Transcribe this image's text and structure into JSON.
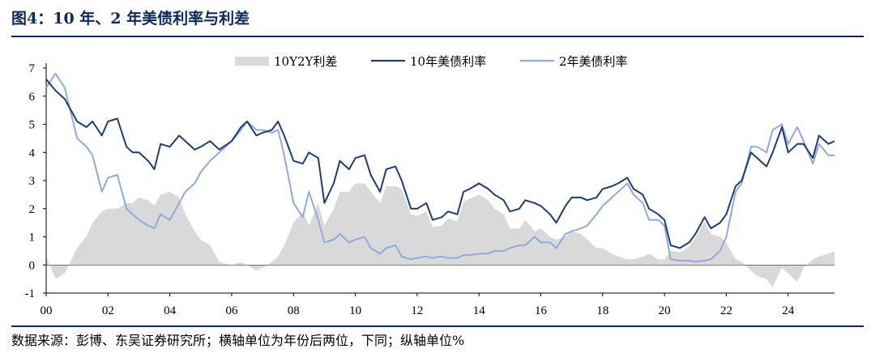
{
  "title": "图4：10 年、2 年美债利率与利差",
  "source": "数据来源：彭博、东吴证券研究所；横轴单位为年份后两位，下同；纵轴单位%",
  "colors": {
    "spread": "#d9d9d9",
    "y10": "#1f3d73",
    "y2": "#8faadc",
    "accent": "#0b2a5b"
  },
  "chart_data": {
    "type": "line",
    "xlabel": "",
    "ylabel": "",
    "ylim": [
      -1,
      7
    ],
    "xlim": [
      2000,
      2025.5
    ],
    "x_ticks": [
      {
        "value": 2000,
        "label": "00"
      },
      {
        "value": 2002,
        "label": "02"
      },
      {
        "value": 2004,
        "label": "04"
      },
      {
        "value": 2006,
        "label": "06"
      },
      {
        "value": 2008,
        "label": "08"
      },
      {
        "value": 2010,
        "label": "10"
      },
      {
        "value": 2012,
        "label": "12"
      },
      {
        "value": 2014,
        "label": "14"
      },
      {
        "value": 2016,
        "label": "16"
      },
      {
        "value": 2018,
        "label": "18"
      },
      {
        "value": 2020,
        "label": "20"
      },
      {
        "value": 2022,
        "label": "22"
      },
      {
        "value": 2024,
        "label": "24"
      }
    ],
    "y_ticks": [
      {
        "value": 7,
        "label": "7"
      },
      {
        "value": 6,
        "label": "6"
      },
      {
        "value": 5,
        "label": "5"
      },
      {
        "value": 4,
        "label": "4"
      },
      {
        "value": 3,
        "label": "3"
      },
      {
        "value": 2,
        "label": "2"
      },
      {
        "value": 1,
        "label": "1"
      },
      {
        "value": 0,
        "label": "0"
      },
      {
        "value": -1,
        "label": "-1"
      }
    ],
    "legend": {
      "position": "top-center",
      "items": [
        {
          "name": "10Y2Y利差",
          "kind": "area",
          "color": "#d9d9d9"
        },
        {
          "name": "10年美债利率",
          "kind": "line",
          "color": "#1f3d73"
        },
        {
          "name": "2年美债利率",
          "kind": "line",
          "color": "#8faadc"
        }
      ]
    },
    "series": [
      {
        "name": "10年美债利率",
        "kind": "line",
        "x": [
          2000.0,
          2000.3,
          2000.6,
          2001.0,
          2001.3,
          2001.5,
          2001.8,
          2002.0,
          2002.3,
          2002.6,
          2002.8,
          2003.0,
          2003.3,
          2003.5,
          2003.7,
          2004.0,
          2004.3,
          2004.5,
          2004.8,
          2005.0,
          2005.3,
          2005.6,
          2006.0,
          2006.3,
          2006.5,
          2006.8,
          2007.0,
          2007.3,
          2007.5,
          2007.7,
          2008.0,
          2008.3,
          2008.5,
          2008.8,
          2009.0,
          2009.3,
          2009.5,
          2009.8,
          2010.0,
          2010.3,
          2010.5,
          2010.8,
          2011.0,
          2011.3,
          2011.5,
          2011.8,
          2012.0,
          2012.3,
          2012.5,
          2012.8,
          2013.0,
          2013.3,
          2013.5,
          2013.7,
          2014.0,
          2014.3,
          2014.5,
          2014.8,
          2015.0,
          2015.3,
          2015.5,
          2015.8,
          2016.0,
          2016.3,
          2016.5,
          2016.8,
          2017.0,
          2017.3,
          2017.5,
          2017.8,
          2018.0,
          2018.3,
          2018.5,
          2018.8,
          2019.0,
          2019.3,
          2019.5,
          2019.8,
          2020.0,
          2020.2,
          2020.5,
          2020.8,
          2021.0,
          2021.3,
          2021.5,
          2021.8,
          2022.0,
          2022.3,
          2022.5,
          2022.8,
          2023.0,
          2023.3,
          2023.5,
          2023.8,
          2024.0,
          2024.3,
          2024.5,
          2024.8,
          2025.0,
          2025.3,
          2025.5
        ],
        "values": [
          6.6,
          6.2,
          5.9,
          5.1,
          4.9,
          5.1,
          4.6,
          5.1,
          5.2,
          4.2,
          4.0,
          4.0,
          3.7,
          3.4,
          4.3,
          4.2,
          4.6,
          4.4,
          4.1,
          4.2,
          4.4,
          4.1,
          4.4,
          4.9,
          5.1,
          4.6,
          4.7,
          4.8,
          5.1,
          4.6,
          3.7,
          3.6,
          4.0,
          3.8,
          2.2,
          2.9,
          3.7,
          3.4,
          3.8,
          3.9,
          3.2,
          2.6,
          3.4,
          3.5,
          3.0,
          2.0,
          2.0,
          2.2,
          1.6,
          1.7,
          1.9,
          1.8,
          2.6,
          2.7,
          2.9,
          2.7,
          2.5,
          2.3,
          1.9,
          2.0,
          2.3,
          2.2,
          2.1,
          1.8,
          1.5,
          2.1,
          2.4,
          2.4,
          2.3,
          2.4,
          2.7,
          2.8,
          2.9,
          3.1,
          2.7,
          2.5,
          2.0,
          1.8,
          1.6,
          0.7,
          0.6,
          0.8,
          1.1,
          1.7,
          1.3,
          1.5,
          1.8,
          2.8,
          3.0,
          4.0,
          3.8,
          3.5,
          4.0,
          4.9,
          4.0,
          4.3,
          4.3,
          3.8,
          4.6,
          4.3,
          4.4
        ]
      },
      {
        "name": "2年美债利率",
        "kind": "line",
        "x": [
          2000.0,
          2000.3,
          2000.6,
          2001.0,
          2001.3,
          2001.5,
          2001.8,
          2002.0,
          2002.3,
          2002.6,
          2002.8,
          2003.0,
          2003.3,
          2003.5,
          2003.7,
          2004.0,
          2004.3,
          2004.5,
          2004.8,
          2005.0,
          2005.3,
          2005.6,
          2006.0,
          2006.3,
          2006.5,
          2006.8,
          2007.0,
          2007.3,
          2007.5,
          2007.7,
          2008.0,
          2008.3,
          2008.5,
          2008.8,
          2009.0,
          2009.3,
          2009.5,
          2009.8,
          2010.0,
          2010.3,
          2010.5,
          2010.8,
          2011.0,
          2011.3,
          2011.5,
          2011.8,
          2012.0,
          2012.3,
          2012.5,
          2012.8,
          2013.0,
          2013.3,
          2013.5,
          2013.7,
          2014.0,
          2014.3,
          2014.5,
          2014.8,
          2015.0,
          2015.3,
          2015.5,
          2015.8,
          2016.0,
          2016.3,
          2016.5,
          2016.8,
          2017.0,
          2017.3,
          2017.5,
          2017.8,
          2018.0,
          2018.3,
          2018.5,
          2018.8,
          2019.0,
          2019.3,
          2019.5,
          2019.8,
          2020.0,
          2020.2,
          2020.5,
          2020.8,
          2021.0,
          2021.3,
          2021.5,
          2021.8,
          2022.0,
          2022.3,
          2022.5,
          2022.8,
          2023.0,
          2023.3,
          2023.5,
          2023.8,
          2024.0,
          2024.3,
          2024.5,
          2024.8,
          2025.0,
          2025.3,
          2025.5
        ],
        "values": [
          6.3,
          6.8,
          6.3,
          4.5,
          4.2,
          3.9,
          2.6,
          3.1,
          3.2,
          2.0,
          1.8,
          1.6,
          1.4,
          1.3,
          1.8,
          1.6,
          2.2,
          2.6,
          2.9,
          3.3,
          3.7,
          4.0,
          4.4,
          4.8,
          5.1,
          4.8,
          4.8,
          4.7,
          4.8,
          3.9,
          2.2,
          1.7,
          2.6,
          1.6,
          0.8,
          0.9,
          1.1,
          0.8,
          0.9,
          1.0,
          0.6,
          0.4,
          0.6,
          0.7,
          0.3,
          0.2,
          0.25,
          0.3,
          0.25,
          0.3,
          0.25,
          0.25,
          0.35,
          0.35,
          0.4,
          0.4,
          0.5,
          0.5,
          0.6,
          0.7,
          0.7,
          1.0,
          0.8,
          0.8,
          0.6,
          1.1,
          1.2,
          1.3,
          1.4,
          1.8,
          2.1,
          2.4,
          2.6,
          2.9,
          2.5,
          2.2,
          1.6,
          1.6,
          1.4,
          0.2,
          0.15,
          0.15,
          0.12,
          0.15,
          0.2,
          0.5,
          1.0,
          2.6,
          2.9,
          4.2,
          4.2,
          4.0,
          4.8,
          5.0,
          4.3,
          4.9,
          4.4,
          3.6,
          4.3,
          3.9,
          3.9
        ]
      },
      {
        "name": "10Y2Y利差",
        "kind": "area",
        "x": [
          2000.0,
          2000.3,
          2000.6,
          2001.0,
          2001.3,
          2001.5,
          2001.8,
          2002.0,
          2002.3,
          2002.6,
          2002.8,
          2003.0,
          2003.3,
          2003.5,
          2003.7,
          2004.0,
          2004.3,
          2004.5,
          2004.8,
          2005.0,
          2005.3,
          2005.6,
          2006.0,
          2006.3,
          2006.5,
          2006.8,
          2007.0,
          2007.3,
          2007.5,
          2007.7,
          2008.0,
          2008.3,
          2008.5,
          2008.8,
          2009.0,
          2009.3,
          2009.5,
          2009.8,
          2010.0,
          2010.3,
          2010.5,
          2010.8,
          2011.0,
          2011.3,
          2011.5,
          2011.8,
          2012.0,
          2012.3,
          2012.5,
          2012.8,
          2013.0,
          2013.3,
          2013.5,
          2013.7,
          2014.0,
          2014.3,
          2014.5,
          2014.8,
          2015.0,
          2015.3,
          2015.5,
          2015.8,
          2016.0,
          2016.3,
          2016.5,
          2016.8,
          2017.0,
          2017.3,
          2017.5,
          2017.8,
          2018.0,
          2018.3,
          2018.5,
          2018.8,
          2019.0,
          2019.3,
          2019.5,
          2019.8,
          2020.0,
          2020.2,
          2020.5,
          2020.8,
          2021.0,
          2021.3,
          2021.5,
          2021.8,
          2022.0,
          2022.3,
          2022.5,
          2022.8,
          2023.0,
          2023.3,
          2023.5,
          2023.8,
          2024.0,
          2024.3,
          2024.5,
          2024.8,
          2025.0,
          2025.3,
          2025.5
        ],
        "values": [
          0.3,
          -0.5,
          -0.3,
          0.6,
          1.0,
          1.5,
          1.9,
          2.0,
          2.0,
          2.2,
          2.2,
          2.4,
          2.3,
          2.1,
          2.5,
          2.6,
          2.4,
          1.8,
          1.2,
          0.9,
          0.7,
          0.1,
          0.0,
          0.1,
          0.0,
          -0.2,
          -0.1,
          0.1,
          0.3,
          0.7,
          1.5,
          1.9,
          1.4,
          2.2,
          1.4,
          2.0,
          2.6,
          2.6,
          2.9,
          2.9,
          2.6,
          2.2,
          2.8,
          2.8,
          2.7,
          1.8,
          1.75,
          1.9,
          1.35,
          1.4,
          1.65,
          1.55,
          2.25,
          2.35,
          2.5,
          2.3,
          2.0,
          1.8,
          1.3,
          1.3,
          1.6,
          1.2,
          1.3,
          1.0,
          0.9,
          1.0,
          1.2,
          1.1,
          0.9,
          0.6,
          0.6,
          0.4,
          0.3,
          0.2,
          0.2,
          0.3,
          0.4,
          0.2,
          0.2,
          0.5,
          0.45,
          0.65,
          0.98,
          1.55,
          1.1,
          1.0,
          0.8,
          0.2,
          0.1,
          -0.2,
          -0.4,
          -0.5,
          -0.8,
          -0.1,
          -0.3,
          -0.6,
          -0.1,
          0.2,
          0.3,
          0.4,
          0.5
        ]
      }
    ]
  }
}
